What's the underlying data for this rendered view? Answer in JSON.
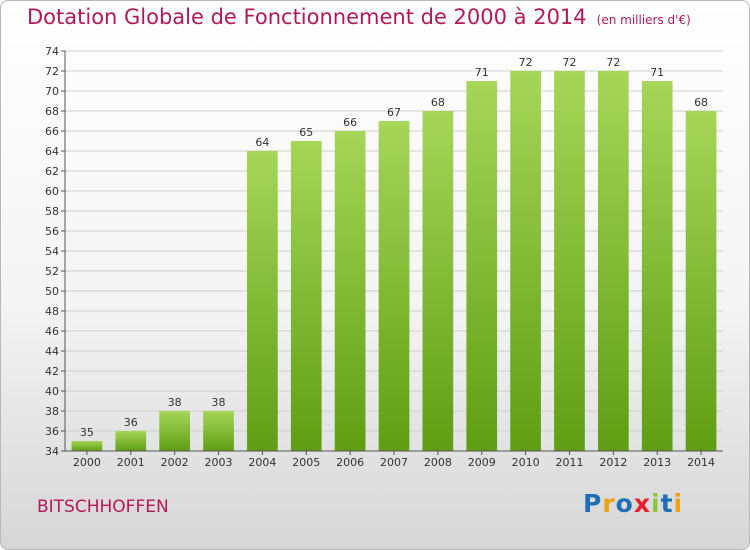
{
  "header": {
    "title": "Dotation Globale de Fonctionnement de 2000 à 2014",
    "subtitle": "(en milliers d'€)"
  },
  "footer": {
    "commune": "BITSCHHOFFEN",
    "logo_letters": [
      "P",
      "r",
      "o",
      "x",
      "i",
      "t",
      "i"
    ],
    "logo_colors": [
      "#1f6fb5",
      "#f0a20e",
      "#1f6fb5",
      "#e8202a",
      "#8cc63f",
      "#1f6fb5",
      "#f0a20e"
    ]
  },
  "colors": {
    "bar_light": "#a6d658",
    "bar_dark": "#5f9e14",
    "title": "#b5175a"
  },
  "chart_data": {
    "type": "bar",
    "categories": [
      "2000",
      "2001",
      "2002",
      "2003",
      "2004",
      "2005",
      "2006",
      "2007",
      "2008",
      "2009",
      "2010",
      "2011",
      "2012",
      "2013",
      "2014"
    ],
    "values": [
      35,
      36,
      38,
      38,
      64,
      65,
      66,
      67,
      68,
      71,
      72,
      72,
      72,
      71,
      68
    ],
    "ylim": [
      34,
      74
    ],
    "yticks": [
      34,
      36,
      38,
      40,
      42,
      44,
      46,
      48,
      50,
      52,
      54,
      56,
      58,
      60,
      62,
      64,
      66,
      68,
      70,
      72,
      74
    ],
    "grid": true,
    "show_data_labels": true
  }
}
